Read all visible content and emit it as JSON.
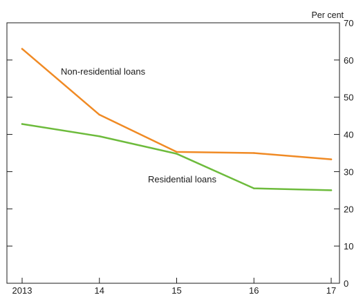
{
  "chart_data": {
    "type": "line",
    "x": [
      2013,
      2014,
      2015,
      2016,
      2017
    ],
    "x_tick_labels": [
      "2013",
      "14",
      "15",
      "16",
      "17"
    ],
    "xlim": [
      2013,
      2017
    ],
    "ylim": [
      0,
      70
    ],
    "y_ticks": [
      0,
      10,
      20,
      30,
      40,
      50,
      60,
      70
    ],
    "y_axis_side": "right",
    "unit_label": "Per cent",
    "grid": false,
    "legend": "inline labels",
    "series": [
      {
        "name": "Non-residential loans",
        "color": "#f08a24",
        "values": [
          63,
          45.3,
          35.3,
          35,
          33.3
        ]
      },
      {
        "name": "Residential loans",
        "color": "#6dbb3c",
        "values": [
          42.8,
          39.5,
          34.8,
          25.5,
          25
        ]
      }
    ]
  }
}
